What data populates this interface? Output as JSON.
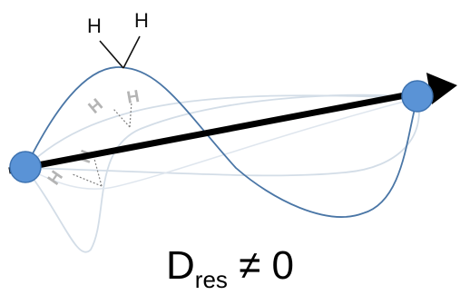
{
  "diagram": {
    "atoms": {
      "top_left": "H",
      "top_right": "H",
      "mid_left": "H",
      "mid_right": "H",
      "low_left": "H",
      "low_right": "H"
    },
    "caption": {
      "symbol": "D",
      "subscript": "res",
      "relation": "≠ 0"
    },
    "colors": {
      "main_curve": "#4a76a6",
      "faint_curve": "#d3dde7",
      "node": "#5a93d6",
      "node_outline": "#3d72b0",
      "arrow": "#000000",
      "faint_label": "#b4b4b4"
    }
  }
}
